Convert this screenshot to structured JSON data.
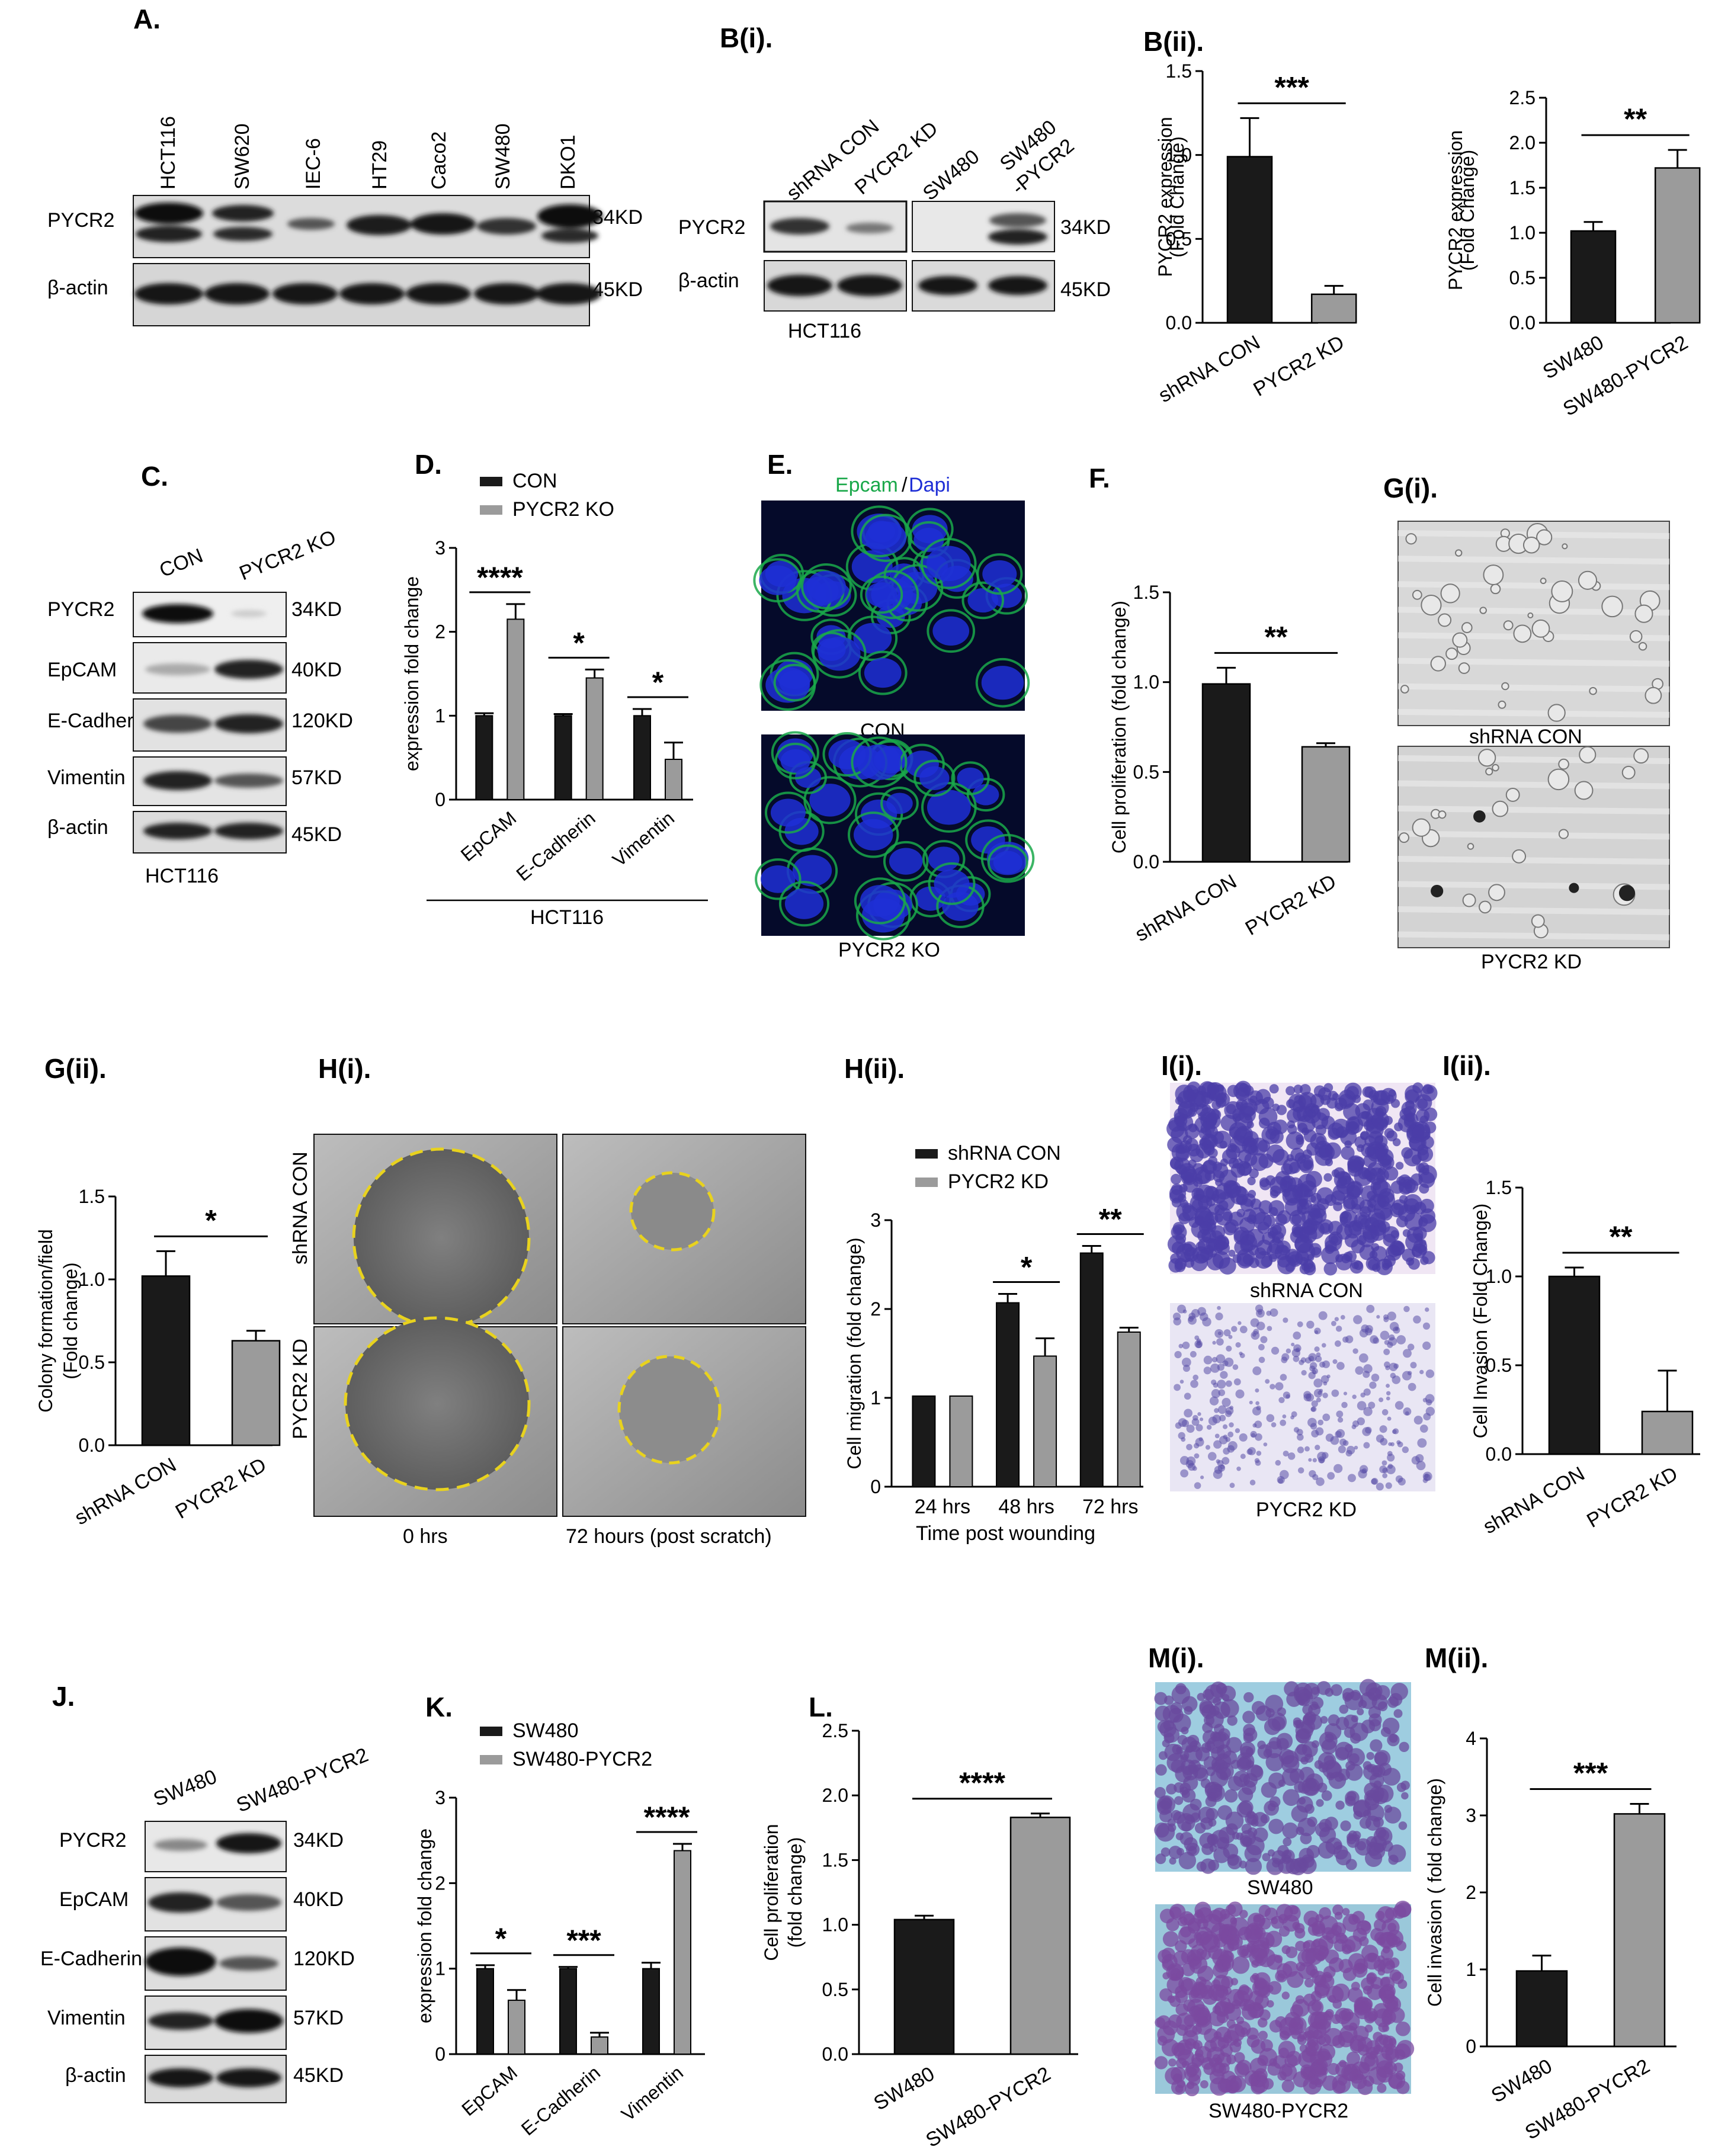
{
  "colors": {
    "black_bar": "#1a1a1a",
    "grey_bar": "#9b9b9b",
    "epcam_green": "#1aa84a",
    "dapi_blue": "#1f2fd6",
    "yellow_circle": "#e8d21e"
  },
  "panels": {
    "A": {
      "label": "A.",
      "lanes": [
        "HCT116",
        "SW620",
        "IEC-6",
        "HT29",
        "Caco2",
        "SW480",
        "DKO1"
      ],
      "rows": [
        "PYCR2",
        "β-actin"
      ],
      "kd": [
        "34KD",
        "45KD"
      ]
    },
    "Bi": {
      "label": "B(i).",
      "lanes_left": [
        "shRNA CON",
        "PYCR2 KD"
      ],
      "lanes_right": [
        "SW480",
        "SW480\n-PYCR2"
      ],
      "rows": [
        "PYCR2",
        "β-actin"
      ],
      "kd": [
        "34KD",
        "45KD"
      ],
      "cell": "HCT116"
    },
    "Bii": {
      "label": "B(ii)."
    },
    "C": {
      "label": "C.",
      "lanes": [
        "CON",
        "PYCR2 KO"
      ],
      "rows": [
        "PYCR2",
        "EpCAM",
        "E-Cadherin",
        "Vimentin",
        "β-actin"
      ],
      "kd": [
        "34KD",
        "40KD",
        "120KD",
        "57KD",
        "45KD"
      ],
      "cell": "HCT116"
    },
    "D": {
      "label": "D.",
      "group_label": "HCT116"
    },
    "E": {
      "label": "E.",
      "stain_green": "Epcam",
      "stain_sep": "/",
      "stain_blue": "Dapi",
      "captions": [
        "CON",
        "PYCR2 KO"
      ]
    },
    "F": {
      "label": "F."
    },
    "Gi": {
      "label": "G(i).",
      "captions": [
        "shRNA CON",
        "PYCR2 KD"
      ]
    },
    "Gii": {
      "label": "G(ii)."
    },
    "Hi": {
      "label": "H(i).",
      "rows": [
        "shRNA CON",
        "PYCR2 KD"
      ],
      "cols": [
        "0 hrs",
        "72 hours (post scratch)"
      ]
    },
    "Hii": {
      "label": "H(ii)."
    },
    "Ii": {
      "label": "I(i).",
      "captions": [
        "shRNA CON",
        "PYCR2 KD"
      ]
    },
    "Iii": {
      "label": "I(ii)."
    },
    "J": {
      "label": "J.",
      "lanes": [
        "SW480",
        "SW480-PYCR2"
      ],
      "rows": [
        "PYCR2",
        "EpCAM",
        "E-Cadherin",
        "Vimentin",
        "β-actin"
      ],
      "kd": [
        "34KD",
        "40KD",
        "120KD",
        "57KD",
        "45KD"
      ]
    },
    "K": {
      "label": "K."
    },
    "L": {
      "label": "L."
    },
    "Mi": {
      "label": "M(i).",
      "captions": [
        "SW480",
        "SW480-PYCR2"
      ]
    },
    "Mii": {
      "label": "M(ii)."
    }
  },
  "chart_data": [
    {
      "id": "Bii-left",
      "type": "bar",
      "categories": [
        "shRNA CON",
        "PYCR2 KD"
      ],
      "values": [
        0.99,
        0.17
      ],
      "errors": [
        0.23,
        0.05
      ],
      "ylabel": "PYCR2 expression\n(Fold Change)",
      "ylim": [
        0,
        1.5
      ],
      "yticks": [
        "0.0",
        "0.5",
        "1.0",
        "1.5"
      ],
      "significance": "***"
    },
    {
      "id": "Bii-right",
      "type": "bar",
      "categories": [
        "SW480",
        "SW480-PYCR2"
      ],
      "values": [
        1.02,
        1.72
      ],
      "errors": [
        0.1,
        0.2
      ],
      "ylabel": "PYCR2 expression\n(Fold Change)",
      "ylim": [
        0,
        2.5
      ],
      "yticks": [
        "0.0",
        "0.5",
        "1.0",
        "1.5",
        "2.0",
        "2.5"
      ],
      "significance": "**"
    },
    {
      "id": "D",
      "type": "bar",
      "categories": [
        "EpCAM",
        "E-Cadherin",
        "Vimentin"
      ],
      "series": [
        {
          "name": "CON",
          "values": [
            1.0,
            1.0,
            1.0
          ],
          "errors": [
            0.03,
            0.02,
            0.08
          ]
        },
        {
          "name": "PYCR2 KO",
          "values": [
            2.15,
            1.45,
            0.48
          ],
          "errors": [
            0.18,
            0.1,
            0.2
          ]
        }
      ],
      "ylabel": "expression fold change",
      "ylim": [
        0,
        3
      ],
      "yticks": [
        "0",
        "1",
        "2",
        "3"
      ],
      "significance": [
        "****",
        "*",
        "*"
      ]
    },
    {
      "id": "F",
      "type": "bar",
      "categories": [
        "shRNA CON",
        "PYCR2 KD"
      ],
      "values": [
        0.99,
        0.64
      ],
      "errors": [
        0.09,
        0.02
      ],
      "ylabel": "Cell proliferation (fold change)",
      "ylim": [
        0,
        1.5
      ],
      "yticks": [
        "0.0",
        "0.5",
        "1.0",
        "1.5"
      ],
      "significance": "**"
    },
    {
      "id": "Gii",
      "type": "bar",
      "categories": [
        "shRNA CON",
        "PYCR2 KD"
      ],
      "values": [
        1.02,
        0.63
      ],
      "errors": [
        0.15,
        0.06
      ],
      "ylabel": "Colony formation/field\n(Fold change)",
      "ylim": [
        0,
        1.5
      ],
      "yticks": [
        "0.0",
        "0.5",
        "1.0",
        "1.5"
      ],
      "significance": "*"
    },
    {
      "id": "Hii",
      "type": "bar",
      "categories": [
        "24 hrs",
        "48 hrs",
        "72 hrs"
      ],
      "series": [
        {
          "name": "shRNA CON",
          "values": [
            1.02,
            2.07,
            2.63
          ],
          "errors": [
            0,
            0.1,
            0.08
          ]
        },
        {
          "name": "PYCR2 KD",
          "values": [
            1.02,
            1.47,
            1.74
          ],
          "errors": [
            0,
            0.2,
            0.05
          ]
        }
      ],
      "xlabel": "Time post wounding",
      "ylabel": "Cell migration (fold change)",
      "ylim": [
        0,
        3
      ],
      "yticks": [
        "0",
        "1",
        "2",
        "3"
      ],
      "significance": [
        "",
        "*",
        "**"
      ]
    },
    {
      "id": "Iii",
      "type": "bar",
      "categories": [
        "shRNA CON",
        "PYCR2 KD"
      ],
      "values": [
        1.0,
        0.24
      ],
      "errors": [
        0.05,
        0.23
      ],
      "ylabel": "Cell Invasion (Fold Change)",
      "ylim": [
        0,
        1.5
      ],
      "yticks": [
        "0.0",
        "0.5",
        "1.0",
        "1.5"
      ],
      "significance": "**"
    },
    {
      "id": "K",
      "type": "bar",
      "categories": [
        "EpCAM",
        "E-Cadherin",
        "Vimentin"
      ],
      "series": [
        {
          "name": "SW480",
          "values": [
            1.0,
            1.0,
            1.0
          ],
          "errors": [
            0.04,
            0.02,
            0.07
          ]
        },
        {
          "name": "SW480-PYCR2",
          "values": [
            0.63,
            0.2,
            2.38
          ],
          "errors": [
            0.12,
            0.05,
            0.08
          ]
        }
      ],
      "ylabel": "expression fold change",
      "ylim": [
        0,
        3
      ],
      "yticks": [
        "0",
        "1",
        "2",
        "3"
      ],
      "significance": [
        "*",
        "***",
        "****"
      ]
    },
    {
      "id": "L",
      "type": "bar",
      "categories": [
        "SW480",
        "SW480-PYCR2"
      ],
      "values": [
        1.04,
        1.83
      ],
      "errors": [
        0.03,
        0.03
      ],
      "ylabel": "Cell proliferation\n(fold change)",
      "ylim": [
        0,
        2.5
      ],
      "yticks": [
        "0.0",
        "0.5",
        "1.0",
        "1.5",
        "2.0",
        "2.5"
      ],
      "significance": "****"
    },
    {
      "id": "Mii",
      "type": "bar",
      "categories": [
        "SW480",
        "SW480-PYCR2"
      ],
      "values": [
        0.98,
        3.02
      ],
      "errors": [
        0.2,
        0.13
      ],
      "ylabel": "Cell invasion ( fold change)",
      "ylim": [
        0,
        4
      ],
      "yticks": [
        "0",
        "1",
        "2",
        "3",
        "4"
      ],
      "significance": "***"
    }
  ]
}
